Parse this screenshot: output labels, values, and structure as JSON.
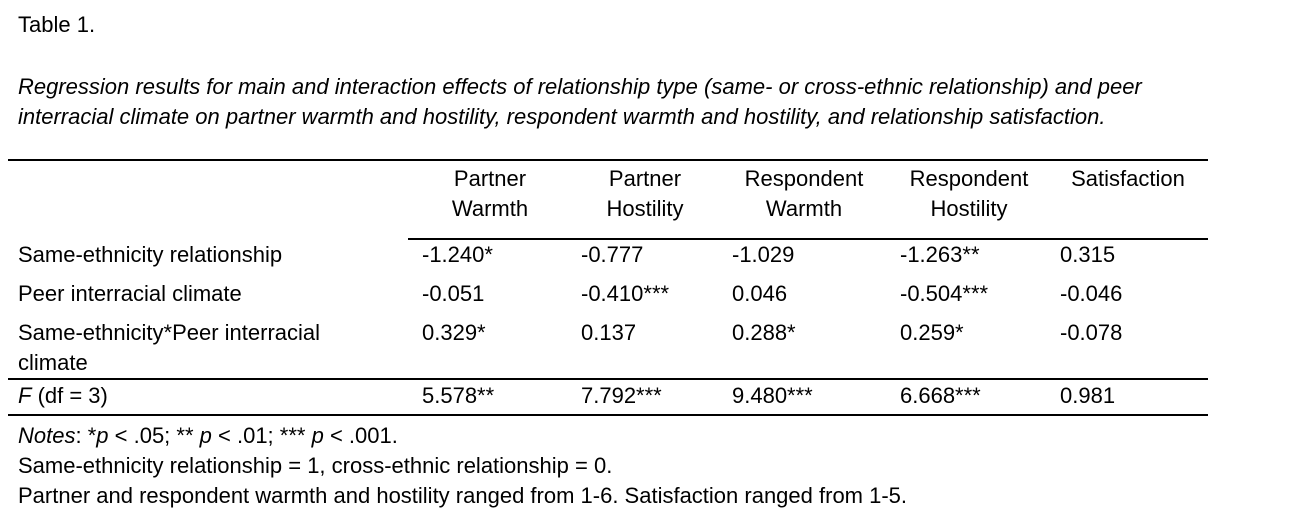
{
  "table": {
    "label": "Table 1.",
    "caption_line1": "Regression results for main and interaction effects of relationship type (same- or cross-ethnic relationship) and peer",
    "caption_line2": "interracial climate on partner warmth and hostility, respondent warmth and hostility, and relationship satisfaction.",
    "columns": [
      {
        "line1": "Partner",
        "line2": "Warmth"
      },
      {
        "line1": "Partner",
        "line2": "Hostility"
      },
      {
        "line1": "Respondent",
        "line2": "Warmth"
      },
      {
        "line1": "Respondent",
        "line2": "Hostility"
      },
      {
        "line1": "Satisfaction",
        "line2": ""
      }
    ],
    "rows": [
      {
        "label": "Same-ethnicity relationship",
        "label2": "",
        "values": [
          "-1.240*",
          "-0.777",
          "-1.029",
          "-1.263**",
          "0.315"
        ]
      },
      {
        "label": "Peer interracial climate",
        "label2": "",
        "values": [
          "-0.051",
          "-0.410***",
          "0.046",
          "-0.504***",
          "-0.046"
        ]
      },
      {
        "label": "Same-ethnicity*Peer interracial",
        "label2": "climate",
        "values": [
          "0.329*",
          "0.137",
          "0.288*",
          "0.259*",
          "-0.078"
        ]
      }
    ],
    "f_row": {
      "label_italic": "F",
      "label_rest": " (df = 3)",
      "values": [
        "5.578**",
        "7.792***",
        "9.480***",
        "6.668***",
        "0.981"
      ]
    },
    "notes": {
      "notes_word": "Notes",
      "p1_prefix": ": *",
      "p": "p",
      "p1_rest": " < .05; ** ",
      "p2_rest": " < .01; *** ",
      "p3_rest": " < .001.",
      "line2": "Same-ethnicity relationship = 1, cross-ethnic relationship = 0.",
      "line3": "Partner and respondent warmth and hostility ranged from 1-6. Satisfaction ranged from 1-5."
    }
  }
}
